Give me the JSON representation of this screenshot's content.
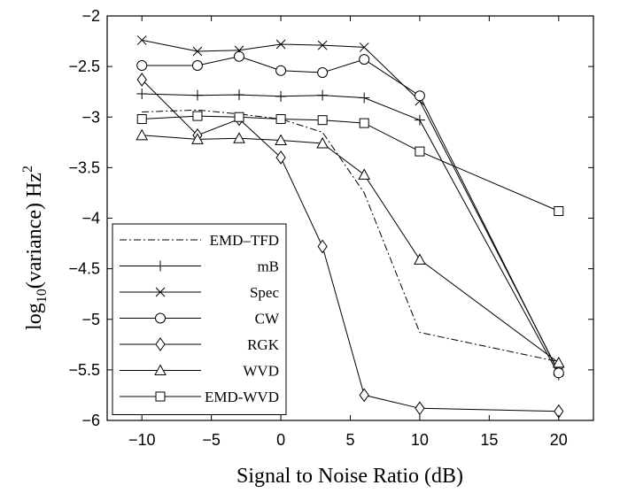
{
  "chart_data": {
    "type": "line",
    "xlabel": "Signal to Noise Ratio (dB)",
    "ylabel": {
      "prefix": "log",
      "subscript": "10",
      "middle": "(variance) Hz",
      "superscript": "2"
    },
    "xlim": [
      -12.5,
      22.5
    ],
    "ylim": [
      -6,
      -2
    ],
    "xticks": [
      -10,
      -5,
      0,
      5,
      10,
      15,
      20
    ],
    "yticks": [
      -6,
      -5.5,
      -5,
      -4.5,
      -4,
      -3.5,
      -3,
      -2.5,
      -2
    ],
    "xtick_labels": [
      "−10",
      "−5",
      "0",
      "5",
      "10",
      "15",
      "20"
    ],
    "ytick_labels": [
      "−6",
      "−5.5",
      "−5",
      "−4.5",
      "−4",
      "−3.5",
      "−3",
      "−2.5",
      "−2"
    ],
    "grid": false,
    "legend_position": "bottom-left",
    "series": [
      {
        "name": "EMD–TFD",
        "style": "dashdot",
        "marker": "none",
        "x": [
          -10,
          -6,
          -3,
          0,
          3,
          6,
          10,
          20
        ],
        "y": [
          -2.95,
          -2.93,
          -2.97,
          -3.02,
          -3.15,
          -3.75,
          -5.13,
          -5.42
        ]
      },
      {
        "name": "mB",
        "style": "solid",
        "marker": "plus",
        "x": [
          -10,
          -6,
          -3,
          0,
          3,
          6,
          10,
          20
        ],
        "y": [
          -2.77,
          -2.785,
          -2.78,
          -2.795,
          -2.785,
          -2.81,
          -3.03,
          -5.55
        ]
      },
      {
        "name": "Spec",
        "style": "solid",
        "marker": "cross",
        "x": [
          -10,
          -6,
          -3,
          0,
          3,
          6,
          10,
          20
        ],
        "y": [
          -2.24,
          -2.35,
          -2.34,
          -2.28,
          -2.29,
          -2.31,
          -2.84,
          -5.52
        ]
      },
      {
        "name": "CW",
        "style": "solid",
        "marker": "circle",
        "x": [
          -10,
          -6,
          -3,
          0,
          3,
          6,
          10,
          20
        ],
        "y": [
          -2.49,
          -2.49,
          -2.4,
          -2.54,
          -2.56,
          -2.43,
          -2.79,
          -5.53
        ]
      },
      {
        "name": "RGK",
        "style": "solid",
        "marker": "diamond",
        "x": [
          -10,
          -6,
          -3,
          0,
          3,
          6,
          10,
          20
        ],
        "y": [
          -2.63,
          -3.18,
          -3.02,
          -3.4,
          -4.28,
          -5.75,
          -5.88,
          -5.91
        ]
      },
      {
        "name": "WVD",
        "style": "solid",
        "marker": "triangle",
        "x": [
          -10,
          -6,
          -3,
          0,
          3,
          6,
          10,
          20
        ],
        "y": [
          -3.18,
          -3.22,
          -3.21,
          -3.23,
          -3.26,
          -3.57,
          -4.41,
          -5.43
        ]
      },
      {
        "name": "EMD-WVD",
        "style": "solid",
        "marker": "square",
        "x": [
          -10,
          -6,
          -3,
          0,
          3,
          6,
          10,
          20
        ],
        "y": [
          -3.02,
          -2.99,
          -3.0,
          -3.02,
          -3.03,
          -3.06,
          -3.34,
          -3.93
        ]
      }
    ]
  }
}
